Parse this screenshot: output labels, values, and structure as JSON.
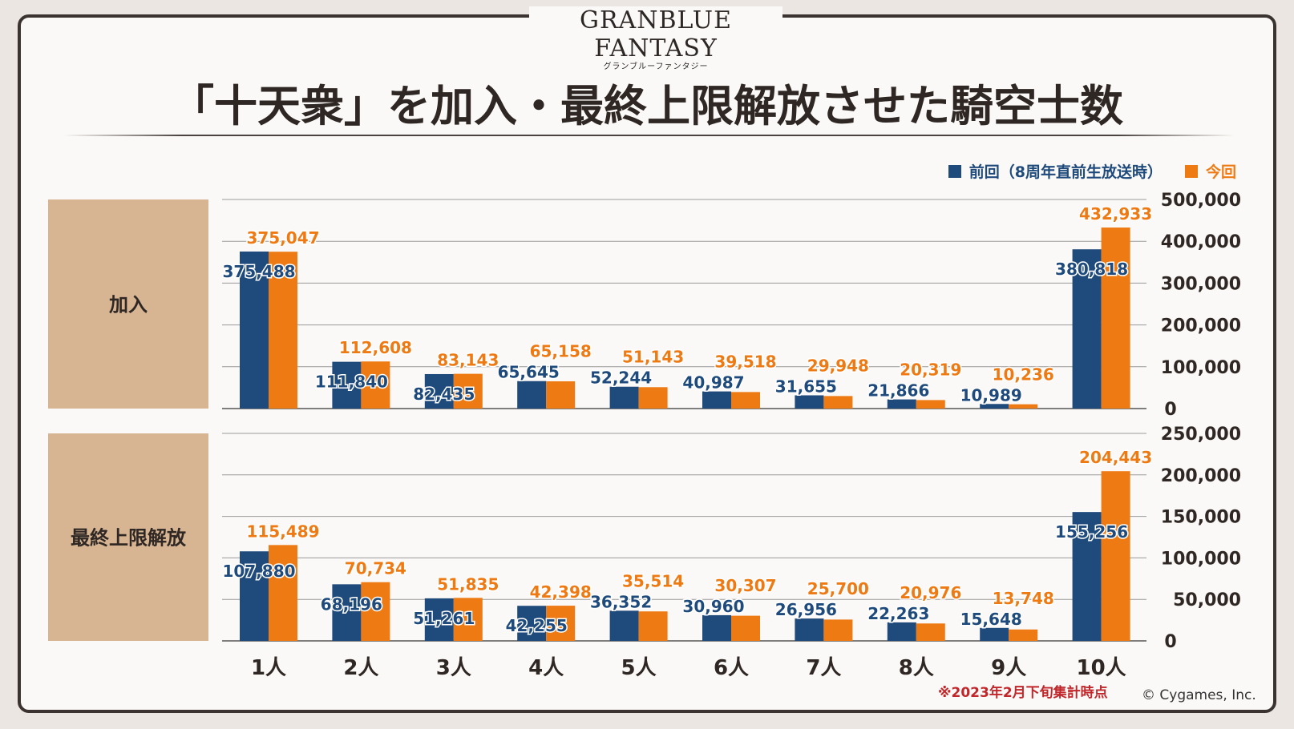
{
  "header": {
    "logo": "GRANBLUE FANTASY",
    "logo_sub": "グランブルーファンタジー",
    "title": "「十天衆」を加入・最終上限解放させた騎空士数"
  },
  "footer": {
    "note": "※2023年2月下旬集計時点",
    "copyright": "© Cygames, Inc."
  },
  "colors": {
    "previous": "#1f4a7c",
    "current": "#ee7a14",
    "label_box": "#d7b593"
  },
  "chart_data": [
    {
      "type": "bar",
      "title": "加入",
      "categories": [
        "1人",
        "2人",
        "3人",
        "4人",
        "5人",
        "6人",
        "7人",
        "8人",
        "9人",
        "10人"
      ],
      "series": [
        {
          "name": "前回（8周年直前生放送時）",
          "values": [
            375488,
            111840,
            82435,
            65645,
            52244,
            40987,
            31655,
            21866,
            10989,
            380818
          ]
        },
        {
          "name": "今回",
          "values": [
            375047,
            112608,
            83143,
            65158,
            51143,
            39518,
            29948,
            20319,
            10236,
            432933
          ]
        }
      ],
      "ylim": [
        0,
        500000
      ],
      "yticks": [
        "0",
        "100,000",
        "200,000",
        "300,000",
        "400,000",
        "500,000"
      ],
      "legend": "top-right",
      "grid": true
    },
    {
      "type": "bar",
      "title": "最終上限解放",
      "categories": [
        "1人",
        "2人",
        "3人",
        "4人",
        "5人",
        "6人",
        "7人",
        "8人",
        "9人",
        "10人"
      ],
      "series": [
        {
          "name": "前回（8周年直前生放送時）",
          "values": [
            107880,
            68196,
            51261,
            42255,
            36352,
            30960,
            26956,
            22263,
            15648,
            155256
          ]
        },
        {
          "name": "今回",
          "values": [
            115489,
            70734,
            51835,
            42398,
            35514,
            30307,
            25700,
            20976,
            13748,
            204443
          ]
        }
      ],
      "ylim": [
        0,
        250000
      ],
      "yticks": [
        "0",
        "50,000",
        "100,000",
        "150,000",
        "200,000",
        "250,000"
      ],
      "grid": true
    }
  ]
}
